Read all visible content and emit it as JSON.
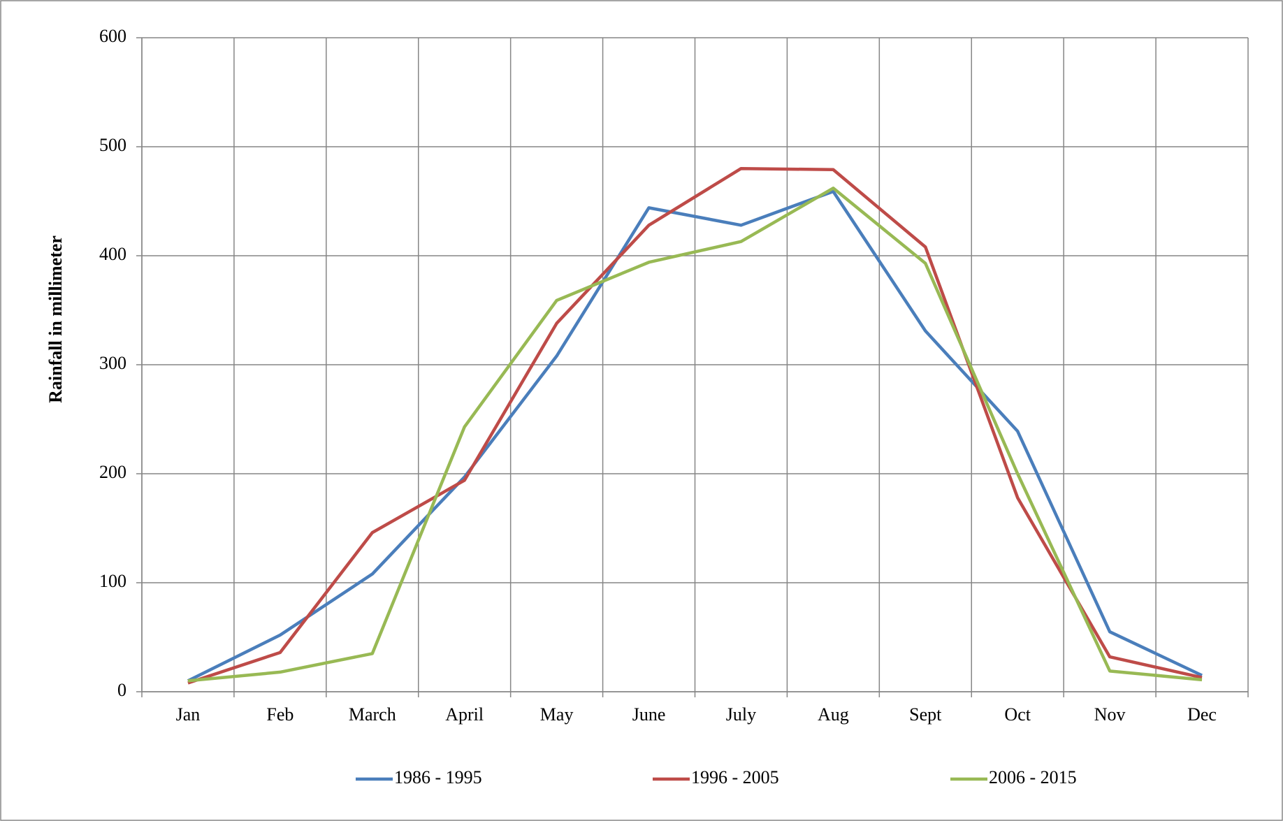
{
  "chart_data": {
    "type": "line",
    "y_label": "Rainfall in millimeter",
    "categories": [
      "Jan",
      "Feb",
      "March",
      "April",
      "May",
      "June",
      "July",
      "Aug",
      "Sept",
      "Oct",
      "Nov",
      "Dec"
    ],
    "series": [
      {
        "name": "1986 - 1995",
        "color": "#4a7ebb",
        "values": [
          10,
          52,
          108,
          197,
          308,
          444,
          428,
          459,
          331,
          239,
          55,
          15
        ]
      },
      {
        "name": "1996 - 2005",
        "color": "#be4b48",
        "values": [
          8,
          36,
          146,
          194,
          338,
          428,
          480,
          479,
          408,
          178,
          32,
          13
        ]
      },
      {
        "name": "2006 - 2015",
        "color": "#98b954",
        "values": [
          10,
          18,
          35,
          243,
          359,
          394,
          413,
          462,
          393,
          200,
          19,
          11
        ]
      }
    ],
    "ylim": [
      0,
      600
    ],
    "yticks": [
      0,
      100,
      200,
      300,
      400,
      500,
      600
    ],
    "grid": true,
    "legend": "bottom"
  }
}
